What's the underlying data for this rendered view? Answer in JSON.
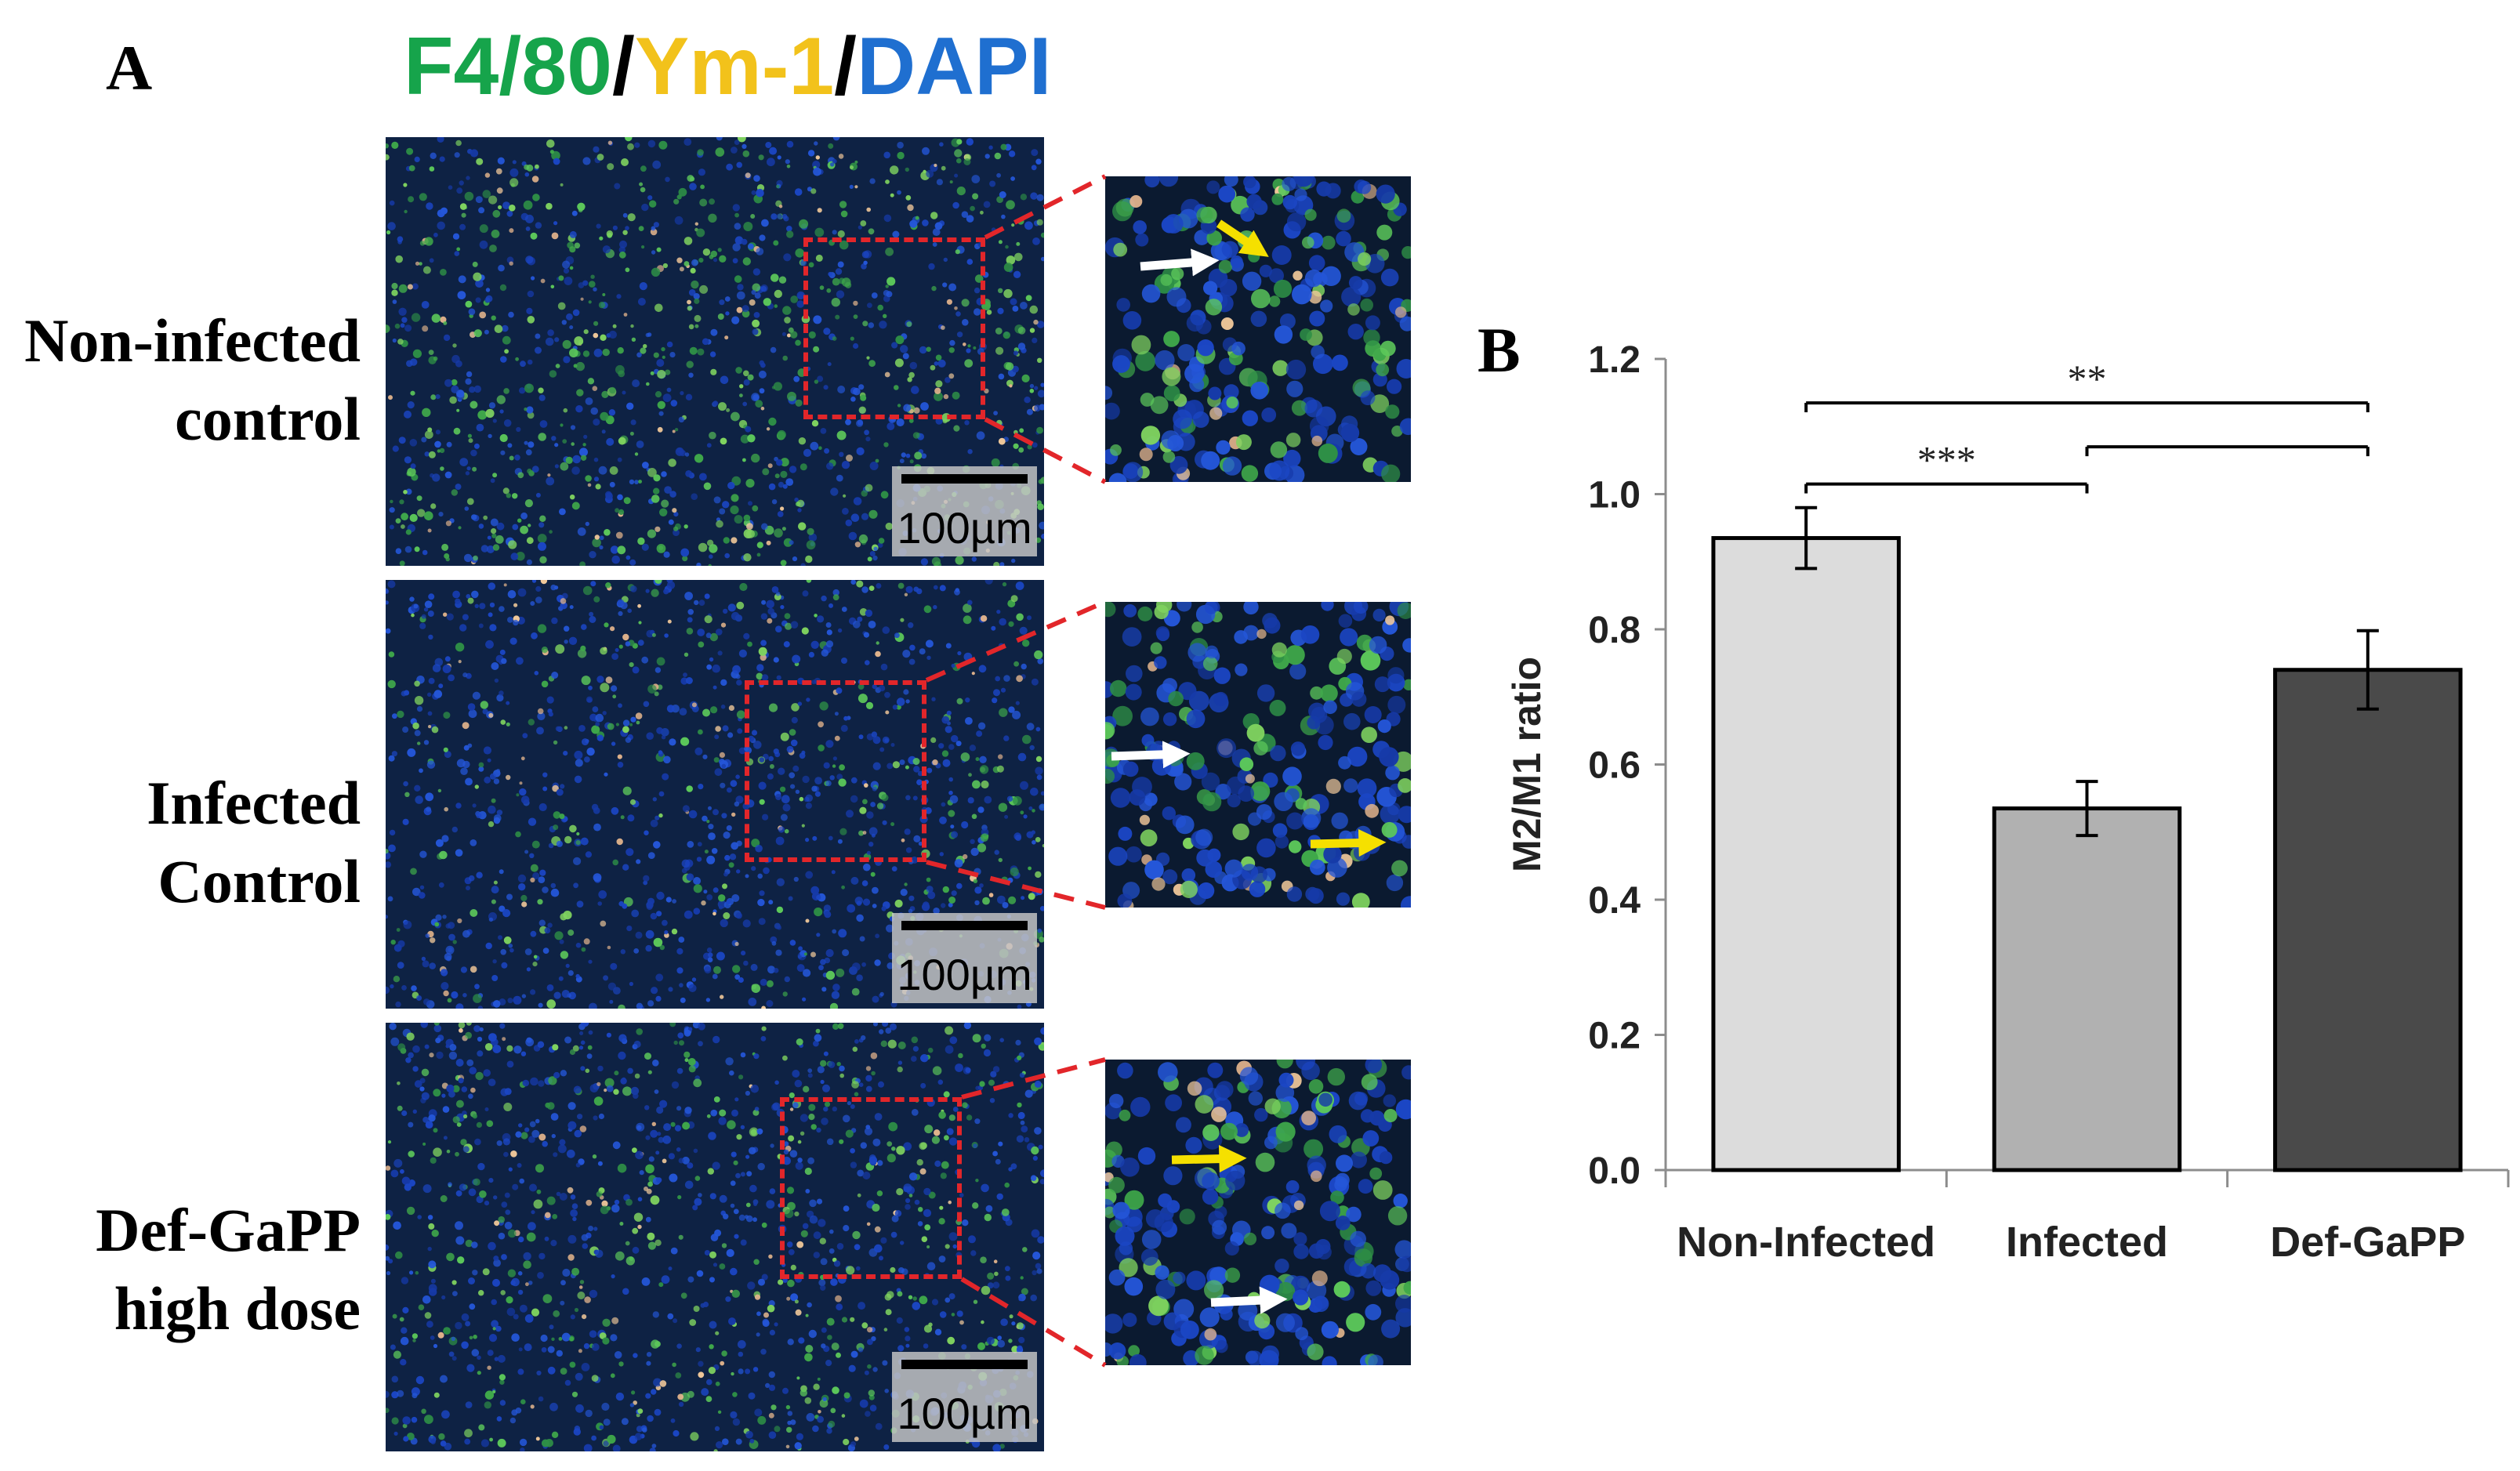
{
  "panel_a": {
    "letter": "A",
    "channel_title": [
      {
        "text": "F4/80",
        "color": "#16a44b"
      },
      {
        "text": "/",
        "color": "#000000"
      },
      {
        "text": "Ym-1",
        "color": "#f2c21b"
      },
      {
        "text": "/",
        "color": "#000000"
      },
      {
        "text": "DAPI",
        "color": "#1f6fd0"
      }
    ],
    "rows": [
      {
        "label_line1": "Non-infected",
        "label_line2": "control",
        "scale_label": "100µm"
      },
      {
        "label_line1": "Infected",
        "label_line2": "Control",
        "scale_label": "100µm"
      },
      {
        "label_line1": "Def-GaPP",
        "label_line2": "high dose",
        "scale_label": "100µm"
      }
    ],
    "colors": {
      "roi": "#e2262a",
      "arrow_white": "#ffffff",
      "arrow_yellow": "#f5e000"
    }
  },
  "panel_b": {
    "letter": "B"
  },
  "chart_data": {
    "type": "bar",
    "title": "",
    "categories": [
      "Non-Infected",
      "Infected",
      "Def-GaPP"
    ],
    "values": [
      0.935,
      0.535,
      0.74
    ],
    "errors": [
      0.045,
      0.04,
      0.058
    ],
    "bar_colors": [
      "#dcdcdc",
      "#b1b1b1",
      "#4a4a4a"
    ],
    "xlabel": "",
    "ylabel": "M2/M1 ratio",
    "ylim": [
      0,
      1.2
    ],
    "yticks": [
      "0.0",
      "0.2",
      "0.4",
      "0.6",
      "0.8",
      "1.0",
      "1.2"
    ],
    "grid": false,
    "significance": [
      {
        "from": 0,
        "to": 1,
        "label": "***"
      },
      {
        "from": 1,
        "to": 2,
        "label": ""
      },
      {
        "from": 0,
        "to": 2,
        "label": "**"
      }
    ]
  }
}
